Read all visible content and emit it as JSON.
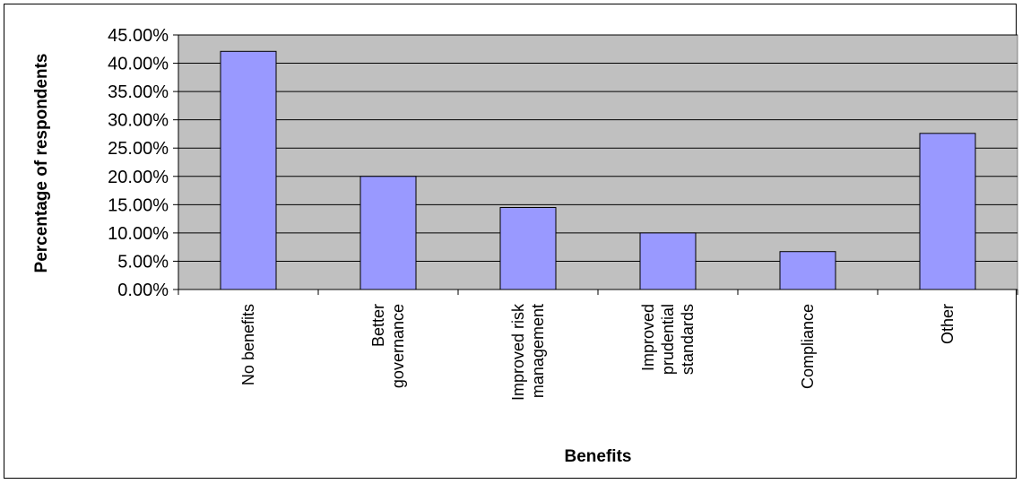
{
  "chart_data": {
    "type": "bar",
    "categories": [
      [
        "No benefits"
      ],
      [
        "Better",
        "governance"
      ],
      [
        "Improved risk",
        "management"
      ],
      [
        "Improved",
        "prudential",
        "standards"
      ],
      [
        "Compliance"
      ],
      [
        "Other"
      ]
    ],
    "values": [
      42.1,
      20.0,
      14.5,
      10.0,
      6.7,
      27.6
    ],
    "ylim": [
      0,
      45
    ],
    "yticks": [
      "0.00%",
      "5.00%",
      "10.00%",
      "15.00%",
      "20.00%",
      "25.00%",
      "30.00%",
      "35.00%",
      "40.00%",
      "45.00%"
    ],
    "xlabel": "Benefits",
    "ylabel": "Percentage of respondents",
    "grid": true,
    "colors": {
      "plot_bg": "#c0c0c0",
      "bar_fill": "#9999ff",
      "bar_stroke": "#000000",
      "gridline": "#000000"
    }
  }
}
